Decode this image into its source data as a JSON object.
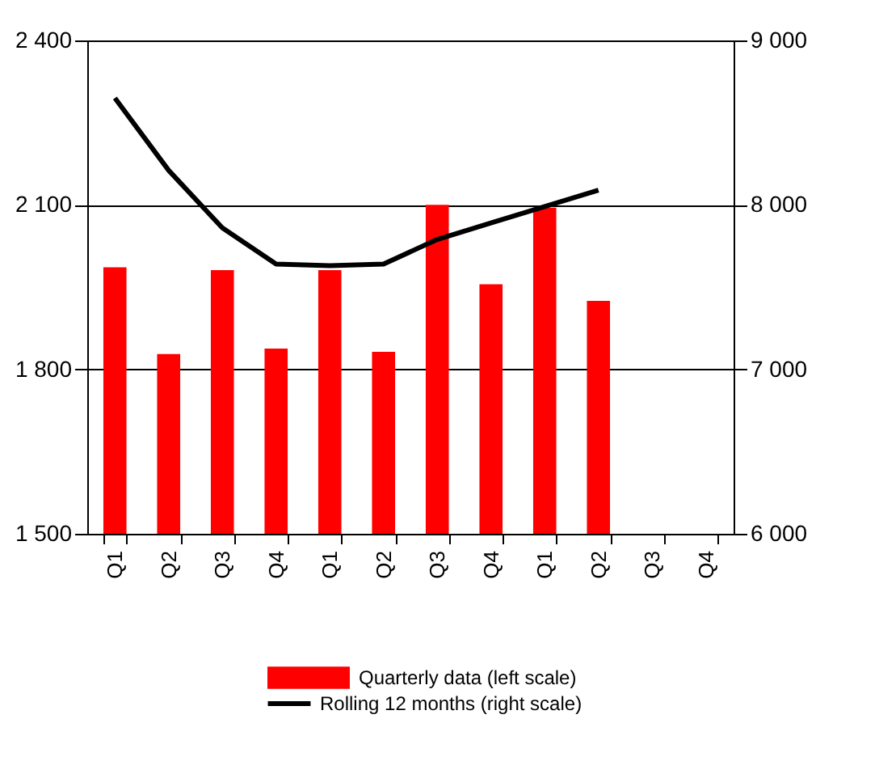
{
  "chart_data": {
    "type": "bar",
    "categories": [
      "Q1",
      "Q2",
      "Q3",
      "Q4",
      "Q1",
      "Q2",
      "Q3",
      "Q4",
      "Q1",
      "Q2",
      "Q3",
      "Q4"
    ],
    "series": [
      {
        "name": "Quarterly data  (left scale)",
        "color": "#ff0000",
        "values": [
          1986,
          1828,
          1981,
          1838,
          1981,
          1832,
          2100,
          1955,
          2095,
          1925,
          null,
          null
        ]
      },
      {
        "name": "Rolling 12 months  (right scale)",
        "type": "line",
        "axis": "y2",
        "color": "#000000",
        "values": [
          8650,
          8210,
          7860,
          7640,
          7630,
          7640,
          7790,
          7890,
          7990,
          8090,
          null,
          null
        ]
      }
    ],
    "ylim": [
      1500,
      2400
    ],
    "yticks": [
      {
        "value": 1500,
        "label": "1 500"
      },
      {
        "value": 1800,
        "label": "1 800"
      },
      {
        "value": 2100,
        "label": "2 100"
      },
      {
        "value": 2400,
        "label": "2 400"
      }
    ],
    "y2lim": [
      6000,
      9000
    ],
    "y2ticks": [
      {
        "value": 6000,
        "label": "6 000"
      },
      {
        "value": 7000,
        "label": "7 000"
      },
      {
        "value": 8000,
        "label": "8 000"
      },
      {
        "value": 9000,
        "label": "9 000"
      }
    ],
    "grid": "y",
    "legend": "bottom"
  }
}
